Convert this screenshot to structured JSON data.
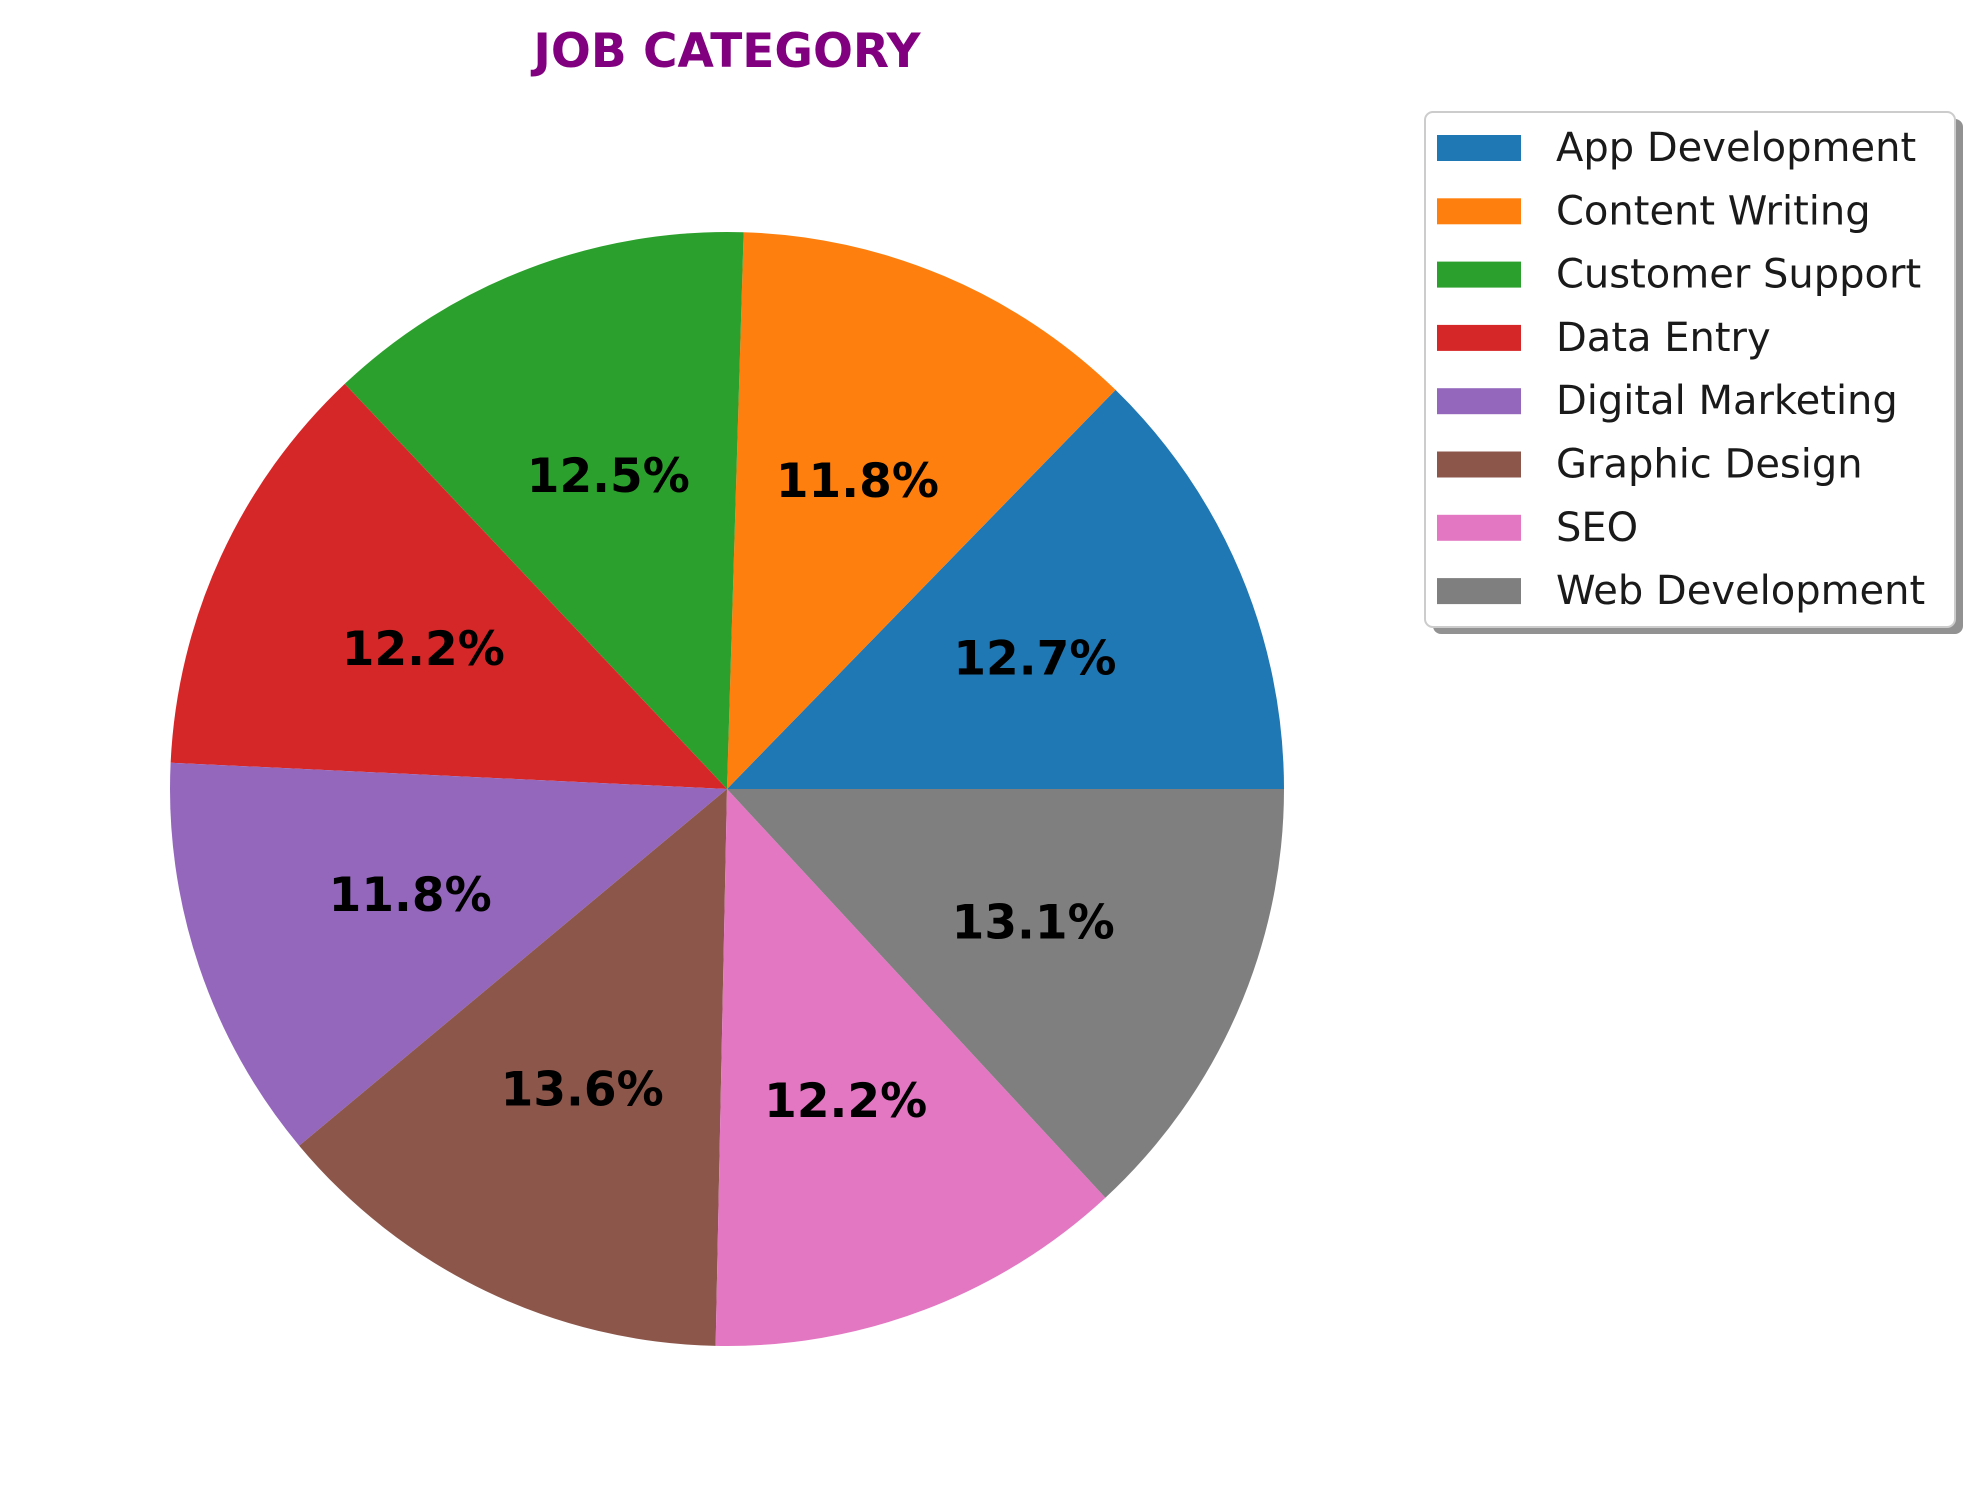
{
  "chart_data": {
    "type": "pie",
    "title": "JOB CATEGORY",
    "title_color": "#800080",
    "categories": [
      "App Development",
      "Content Writing",
      "Customer Support",
      "Data Entry",
      "Digital Marketing",
      "Graphic Design",
      "SEO",
      "Web Development"
    ],
    "values": [
      12.7,
      11.8,
      12.5,
      12.2,
      11.8,
      13.6,
      12.2,
      13.1
    ],
    "labels": [
      "12.7%",
      "11.8%",
      "12.5%",
      "12.2%",
      "11.8%",
      "13.6%",
      "12.2%",
      "13.1%"
    ],
    "colors": [
      "#1f77b4",
      "#ff7f0e",
      "#2ca02c",
      "#d62728",
      "#9467bd",
      "#8c564b",
      "#e377c2",
      "#7f7f7f"
    ],
    "start_angle_deg": 0,
    "direction": "counterclockwise",
    "legend": {
      "placement": "upper right, outside",
      "shadow": true
    }
  }
}
